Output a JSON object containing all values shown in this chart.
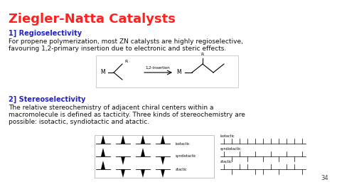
{
  "title": "Ziegler-Natta Catalysts",
  "title_color": "#FF2020",
  "title_fontsize": 13,
  "bg_color": "#FFFFFF",
  "section1_label": "1] Regioselectivity",
  "section1_color": "#2222CC",
  "section1_fontsize": 7,
  "section1_text1": "For propene polymerization, most ZN catalysts are highly regioselective,",
  "section1_text2": "favouring 1,2-primary insertion due to electronic and steric effects.",
  "section2_label": "2] Stereoselectivity",
  "section2_color": "#2222CC",
  "section2_fontsize": 7,
  "section2_text1": "The relative stereochemistry of adjacent chiral centers within a",
  "section2_text2": "macromolecule is defined as tacticity. Three kinds of stereochemistry are",
  "section2_text3": "possible: isotactic, syndiotactic and atactic.",
  "body_fontsize": 6.5,
  "body_color": "#111111",
  "slide_number": "34",
  "font_family": "DejaVu Sans"
}
